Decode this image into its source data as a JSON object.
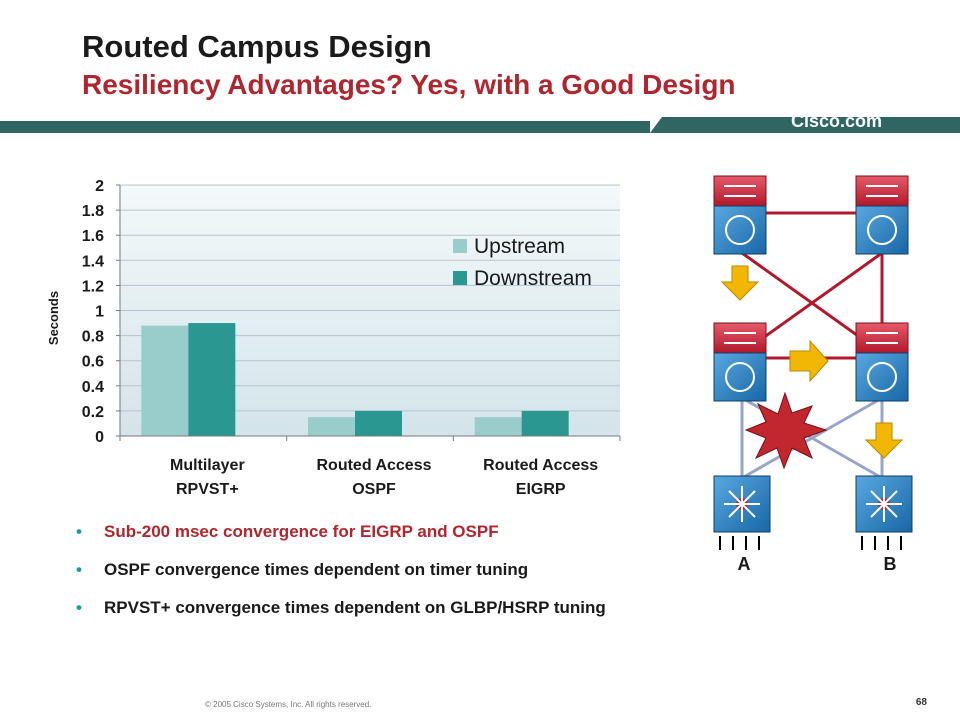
{
  "slide": {
    "title": "Routed Campus Design",
    "subtitle": "Resiliency Advantages? Yes, with a Good Design",
    "brand": "Cisco.com",
    "copyright": "© 2005 Cisco Systems, Inc. All rights reserved.",
    "page_number": "68",
    "colors": {
      "title_red": "#b0262e",
      "header_bar": "#2f6663",
      "upstream": "#98cdcc",
      "downstream": "#2a9891",
      "bullet_dot": "#1b9ba0"
    }
  },
  "bullets": [
    {
      "text": "Sub-200 msec convergence for EIGRP and OSPF"
    },
    {
      "text": "OSPF convergence times dependent on timer tuning"
    },
    {
      "text": "RPVST+ convergence times dependent on GLBP/HSRP tuning"
    }
  ],
  "chart_data": {
    "type": "bar",
    "ylabel": "Seconds",
    "ylim": [
      0,
      2
    ],
    "yticks": [
      "0",
      "0.2",
      "0.4",
      "0.6",
      "0.8",
      "1",
      "1.2",
      "1.4",
      "1.6",
      "1.8",
      "2"
    ],
    "categories": [
      {
        "line1": "Multilayer",
        "line2": "RPVST+"
      },
      {
        "line1": "Routed Access",
        "line2": "OSPF"
      },
      {
        "line1": "Routed Access",
        "line2": "EIGRP"
      }
    ],
    "series": [
      {
        "name": "Upstream",
        "color": "#98cdcc",
        "values": [
          0.88,
          0.15,
          0.15
        ]
      },
      {
        "name": "Downstream",
        "color": "#2a9891",
        "values": [
          0.9,
          0.2,
          0.2
        ]
      }
    ],
    "legend_position": "top-right",
    "grid": true
  },
  "network": {
    "label_a": "A",
    "label_b": "B"
  }
}
